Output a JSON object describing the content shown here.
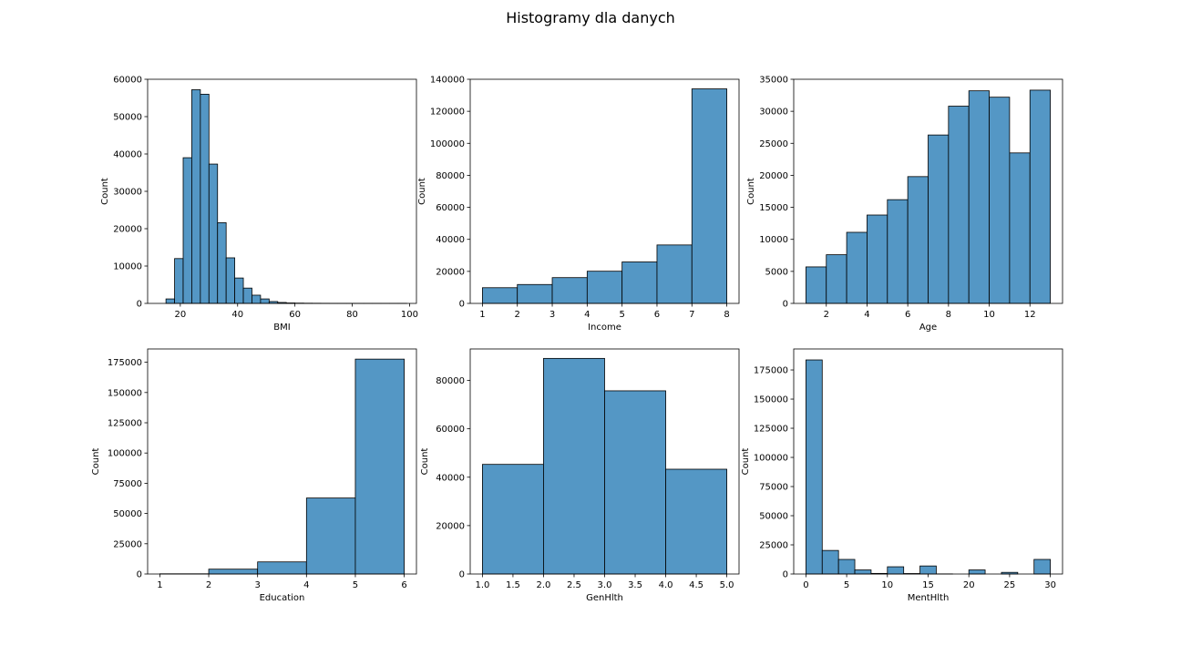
{
  "figure": {
    "title": "Histogramy dla danych"
  },
  "colors": {
    "bar": "#5497c5",
    "bar_edge": "#000000",
    "axis": "#000000"
  },
  "chart_data": [
    {
      "type": "bar",
      "xlabel": "BMI",
      "ylabel": "Count",
      "xlim": [
        8.6,
        102.4
      ],
      "ylim": [
        0,
        60000
      ],
      "xticks": [
        20,
        40,
        60,
        80,
        100
      ],
      "yticks": [
        0,
        10000,
        20000,
        30000,
        40000,
        50000,
        60000
      ],
      "bin_edges": [
        15,
        18,
        21,
        24,
        27,
        30,
        33,
        36,
        39,
        42,
        45,
        48,
        51,
        54,
        57,
        60,
        63,
        66,
        69,
        72,
        75,
        78,
        81,
        84,
        87,
        90,
        93,
        96,
        99
      ],
      "values": [
        1200,
        12000,
        39000,
        57200,
        56000,
        37300,
        21600,
        12200,
        6800,
        4100,
        2200,
        1200,
        500,
        250,
        120,
        80,
        50,
        40,
        30,
        20,
        20,
        15,
        10,
        10,
        10,
        10,
        10,
        15
      ]
    },
    {
      "type": "bar",
      "xlabel": "Income",
      "ylabel": "Count",
      "xlim": [
        0.65,
        8.35
      ],
      "ylim": [
        0,
        140000
      ],
      "xticks": [
        1,
        2,
        3,
        4,
        5,
        6,
        7,
        8
      ],
      "yticks": [
        0,
        20000,
        40000,
        60000,
        80000,
        100000,
        120000,
        140000
      ],
      "bin_edges": [
        1,
        2,
        3,
        4,
        5,
        6,
        7,
        8
      ],
      "values": [
        9800,
        11800,
        16100,
        20100,
        25900,
        36500,
        134000
      ]
    },
    {
      "type": "bar",
      "xlabel": "Age",
      "ylabel": "Count",
      "xlim": [
        0.4,
        13.6
      ],
      "ylim": [
        0,
        35000
      ],
      "xticks": [
        2,
        4,
        6,
        8,
        10,
        12
      ],
      "yticks": [
        0,
        5000,
        10000,
        15000,
        20000,
        25000,
        30000,
        35000
      ],
      "bin_edges": [
        1,
        2,
        3,
        4,
        5,
        6,
        7,
        8,
        9,
        10,
        11,
        12,
        13
      ],
      "values": [
        5700,
        7600,
        11100,
        13800,
        16200,
        19800,
        26300,
        30800,
        33200,
        32200,
        23500,
        33300
      ]
    },
    {
      "type": "bar",
      "xlabel": "Education",
      "ylabel": "Count",
      "xlim": [
        0.75,
        6.25
      ],
      "ylim": [
        0,
        186000
      ],
      "xticks": [
        1,
        2,
        3,
        4,
        5,
        6
      ],
      "yticks": [
        0,
        25000,
        50000,
        75000,
        100000,
        125000,
        150000,
        175000
      ],
      "bin_edges": [
        1,
        2,
        3,
        4,
        5,
        6
      ],
      "values": [
        170,
        4000,
        10000,
        62800,
        177600
      ]
    },
    {
      "type": "bar",
      "xlabel": "GenHlth",
      "ylabel": "Count",
      "xlim": [
        0.8,
        5.2
      ],
      "ylim": [
        0,
        93000
      ],
      "xticks": [
        "1.0",
        "1.5",
        "2.0",
        "2.5",
        "3.0",
        "3.5",
        "4.0",
        "4.5",
        "5.0"
      ],
      "yticks": [
        0,
        20000,
        40000,
        60000,
        80000
      ],
      "bin_edges": [
        1,
        2,
        3,
        4,
        5
      ],
      "values": [
        45300,
        89100,
        75700,
        43300
      ]
    },
    {
      "type": "bar",
      "xlabel": "MentHlth",
      "ylabel": "Count",
      "xlim": [
        -1.5,
        31.5
      ],
      "ylim": [
        0,
        193000
      ],
      "xticks": [
        0,
        5,
        10,
        15,
        20,
        25,
        30
      ],
      "yticks": [
        0,
        25000,
        50000,
        75000,
        100000,
        125000,
        150000,
        175000
      ],
      "bin_edges": [
        0,
        2,
        4,
        6,
        8,
        10,
        12,
        14,
        16,
        18,
        20,
        22,
        24,
        26,
        28,
        30
      ],
      "values": [
        183600,
        20200,
        12500,
        3500,
        500,
        6200,
        400,
        6900,
        100,
        0,
        3500,
        0,
        1400,
        0,
        12500
      ]
    }
  ]
}
